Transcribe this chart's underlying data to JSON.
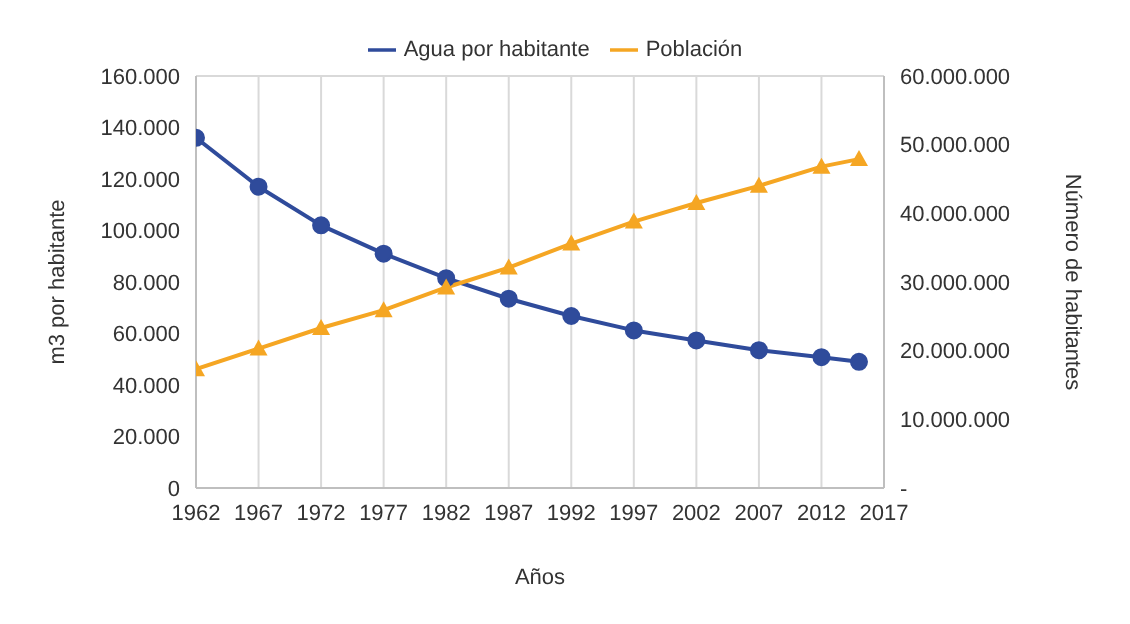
{
  "chart_data": {
    "type": "line",
    "xlabel": "Años",
    "ylabel": "m3 por habitante",
    "y2label": "Número de habitantes",
    "x": [
      1962,
      1967,
      1972,
      1977,
      1982,
      1987,
      1992,
      1997,
      2002,
      2007,
      2012,
      2015
    ],
    "series": [
      {
        "name": "Agua por habitante",
        "color": "#2f4b9b",
        "marker": "circle",
        "values": [
          136000,
          117000,
          102000,
          91000,
          81500,
          73500,
          66800,
          61200,
          57300,
          53500,
          50800,
          49000
        ]
      },
      {
        "name": "Población",
        "color": "#f5a623",
        "marker": "triangle",
        "axis": "y2",
        "values": [
          17300000,
          20300000,
          23300000,
          25900000,
          29200000,
          32100000,
          35600000,
          38800000,
          41500000,
          44000000,
          46800000,
          47900000
        ]
      }
    ],
    "xlim": [
      1962,
      2017
    ],
    "xticks": [
      1962,
      1967,
      1972,
      1977,
      1982,
      1987,
      1992,
      1997,
      2002,
      2007,
      2012,
      2017
    ],
    "ylim": [
      0,
      160000
    ],
    "yticks": [
      {
        "value": 0,
        "label": "0"
      },
      {
        "value": 20000,
        "label": "20.000"
      },
      {
        "value": 40000,
        "label": "40.000"
      },
      {
        "value": 60000,
        "label": "60.000"
      },
      {
        "value": 80000,
        "label": "80.000"
      },
      {
        "value": 100000,
        "label": "100.000"
      },
      {
        "value": 120000,
        "label": "120.000"
      },
      {
        "value": 140000,
        "label": "140.000"
      },
      {
        "value": 160000,
        "label": "160.000"
      }
    ],
    "y2lim": [
      0,
      60000000
    ],
    "y2ticks": [
      {
        "value": 0,
        "label": "-"
      },
      {
        "value": 10000000,
        "label": "10.000.000"
      },
      {
        "value": 20000000,
        "label": "20.000.000"
      },
      {
        "value": 30000000,
        "label": "30.000.000"
      },
      {
        "value": 40000000,
        "label": "40.000.000"
      },
      {
        "value": 50000000,
        "label": "50.000.000"
      },
      {
        "value": 60000000,
        "label": "60.000.000"
      }
    ],
    "grid": true,
    "legend": "top",
    "line_style": "solid"
  }
}
